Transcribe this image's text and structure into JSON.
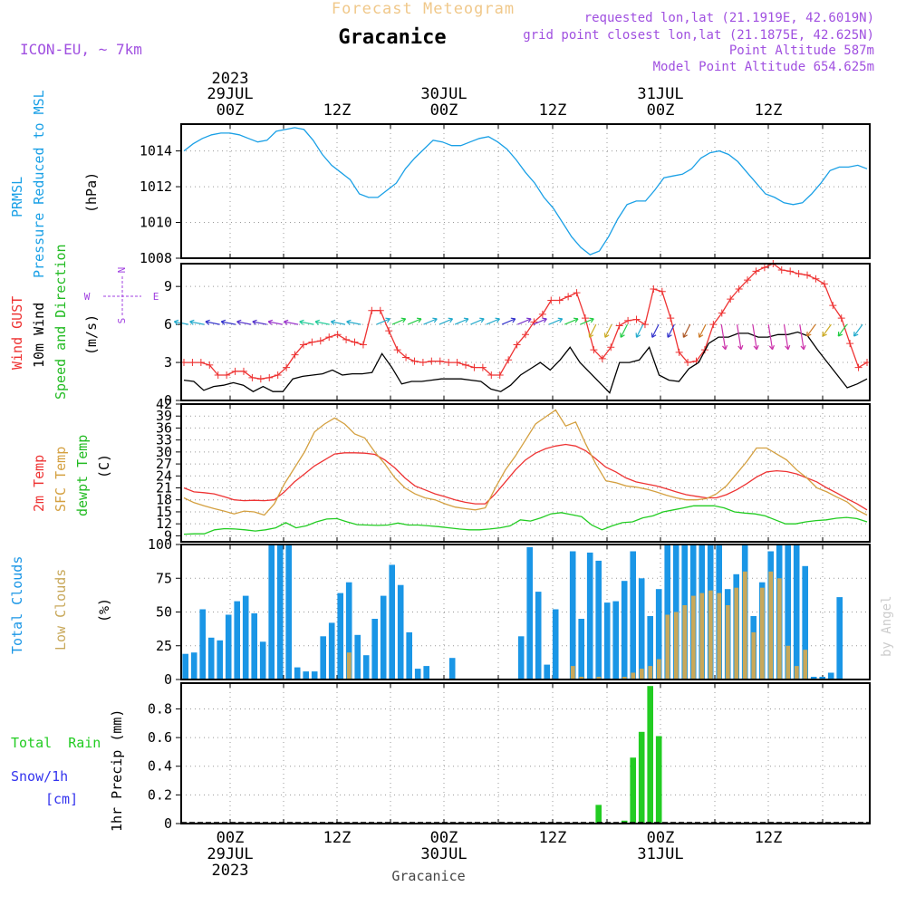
{
  "header": {
    "title": "Forecast Meteogram",
    "location": "Gracanice",
    "model": "ICON-EU, ~ 7km",
    "requested": "requested lon,lat (21.1919E, 42.6019N)",
    "gridpoint": "grid point closest lon,lat (21.1875E, 42.625N)",
    "altitude": "Point Altitude 587m",
    "model_altitude": "Model Point Altitude 654.625m",
    "footer": "Gracanice",
    "credit": "by Angel"
  },
  "time_axis": {
    "ticks": [
      "00Z",
      "12Z",
      "00Z",
      "12Z",
      "00Z",
      "12Z"
    ],
    "dates": [
      "29JUL",
      "30JUL",
      "31JUL"
    ],
    "year": "2023"
  },
  "colors": {
    "pressure": "#1aa0e6",
    "gust": "#ee3333",
    "wind": "#000000",
    "temp": "#ee3333",
    "sfc": "#d4a040",
    "dew": "#22cc22",
    "cloud_total": "#1a96e6",
    "cloud_low": "#c8a85a",
    "rain": "#22cc22",
    "snow": "#3333ee",
    "purple": "#a040e0"
  },
  "labels": {
    "p1": [
      "PRMSL",
      "Pressure Reduced to MSL",
      "(hPa)"
    ],
    "p2": [
      "Wind GUST",
      "10m Wind",
      "Speed and Direction",
      "(m/s)"
    ],
    "compass": {
      "w": "W",
      "e": "E",
      "n": "N",
      "s": "S"
    },
    "p3": [
      "2m Temp",
      "SFC Temp",
      "dewpt Temp",
      "(C)"
    ],
    "p4": [
      "Total Clouds",
      "Low Clouds",
      "(%)"
    ],
    "p5": [
      "Total  Rain",
      "Snow/1h",
      "[cm]",
      "1hr Precip (mm)"
    ]
  },
  "chart_data": [
    {
      "type": "line",
      "name_ref": "pressure",
      "ylim": [
        1008,
        1015.5
      ],
      "yticks": [
        1008,
        1010,
        1012,
        1014
      ],
      "series": [
        {
          "name": "PRMSL",
          "values": [
            1014.0,
            1014.4,
            1014.7,
            1014.9,
            1015.0,
            1015.0,
            1014.9,
            1014.7,
            1014.5,
            1014.6,
            1015.1,
            1015.2,
            1015.3,
            1015.2,
            1014.6,
            1013.8,
            1013.2,
            1012.8,
            1012.4,
            1011.6,
            1011.4,
            1011.4,
            1011.8,
            1012.2,
            1013.0,
            1013.6,
            1014.1,
            1014.6,
            1014.5,
            1014.3,
            1014.3,
            1014.5,
            1014.7,
            1014.8,
            1014.5,
            1014.1,
            1013.5,
            1012.8,
            1012.2,
            1011.4,
            1010.8,
            1010.0,
            1009.2,
            1008.6,
            1008.2,
            1008.4,
            1009.2,
            1010.2,
            1011.0,
            1011.2,
            1011.2,
            1011.8,
            1012.5,
            1012.6,
            1012.7,
            1013.0,
            1013.6,
            1013.9,
            1014.0,
            1013.8,
            1013.4,
            1012.8,
            1012.2,
            1011.6,
            1011.4,
            1011.1,
            1011.0,
            1011.1,
            1011.6,
            1012.2,
            1012.9,
            1013.1,
            1013.1,
            1013.2,
            1013.0
          ]
        }
      ]
    },
    {
      "type": "line",
      "name_ref": "wind",
      "ylim": [
        0,
        10.8
      ],
      "yticks": [
        0,
        3,
        6,
        9
      ],
      "series": [
        {
          "name": "Wind GUST",
          "values": [
            3.0,
            3.0,
            3.0,
            2.8,
            2.0,
            2.0,
            2.3,
            2.3,
            1.8,
            1.7,
            1.8,
            2.0,
            2.6,
            3.6,
            4.4,
            4.6,
            4.7,
            5.0,
            5.2,
            4.8,
            4.6,
            4.4,
            7.1,
            7.1,
            5.5,
            4.0,
            3.4,
            3.1,
            3.0,
            3.1,
            3.1,
            3.0,
            3.0,
            2.8,
            2.6,
            2.6,
            2.0,
            2.0,
            3.2,
            4.4,
            5.2,
            6.2,
            6.8,
            7.9,
            7.9,
            8.2,
            8.5,
            6.5,
            4.0,
            3.3,
            4.2,
            5.9,
            6.3,
            6.4,
            6.0,
            8.8,
            8.6,
            6.5,
            3.8,
            3.0,
            3.1,
            4.0,
            6.0,
            6.9,
            8.0,
            8.8,
            9.5,
            10.2,
            10.5,
            10.8,
            10.3,
            10.2,
            10.0,
            9.9,
            9.6,
            9.2,
            7.5,
            6.5,
            4.5,
            2.6,
            3.0
          ]
        },
        {
          "name": "10m Wind",
          "values": [
            1.6,
            1.5,
            0.8,
            1.1,
            1.2,
            1.4,
            1.2,
            0.7,
            1.1,
            0.7,
            0.7,
            1.7,
            1.9,
            2.0,
            2.1,
            2.4,
            2.0,
            2.1,
            2.1,
            2.2,
            3.7,
            2.6,
            1.3,
            1.5,
            1.5,
            1.6,
            1.7,
            1.7,
            1.7,
            1.6,
            1.5,
            0.9,
            0.7,
            1.2,
            2.0,
            2.5,
            3.0,
            2.4,
            3.2,
            4.2,
            3.0,
            2.2,
            1.4,
            0.6,
            3.0,
            3.0,
            3.2,
            4.2,
            2.0,
            1.6,
            1.5,
            2.5,
            3.0,
            4.5,
            5.0,
            5.0,
            5.3,
            5.3,
            5.0,
            5.0,
            5.2,
            5.2,
            5.4,
            5.1,
            4.0,
            3.0,
            2.0,
            1.0,
            1.3,
            1.7
          ]
        }
      ]
    },
    {
      "type": "line",
      "name_ref": "temp",
      "ylim": [
        7.5,
        42
      ],
      "yticks": [
        9,
        12,
        15,
        18,
        21,
        24,
        27,
        30,
        33,
        36,
        39,
        42
      ],
      "series": [
        {
          "name": "2m Temp",
          "values": [
            21.0,
            20.0,
            19.8,
            19.5,
            18.8,
            18.0,
            17.8,
            17.9,
            17.8,
            18.0,
            20.0,
            22.5,
            24.5,
            26.5,
            28.0,
            29.5,
            29.8,
            29.8,
            29.7,
            29.4,
            28.0,
            26.0,
            23.5,
            21.5,
            20.5,
            19.5,
            18.8,
            18.0,
            17.4,
            17.0,
            17.0,
            19.5,
            22.5,
            25.5,
            28.0,
            29.7,
            30.8,
            31.5,
            31.9,
            31.5,
            30.3,
            28.3,
            26.2,
            25.0,
            23.5,
            22.5,
            22.0,
            21.5,
            20.8,
            20.0,
            19.3,
            18.9,
            18.5,
            18.5,
            19.3,
            20.5,
            22.0,
            23.7,
            25.0,
            25.3,
            25.1,
            24.5,
            23.5,
            22.5,
            21.0,
            19.7,
            18.3,
            17.0,
            15.5
          ]
        },
        {
          "name": "SFC Temp",
          "values": [
            18.5,
            17.3,
            16.5,
            15.8,
            15.2,
            14.5,
            15.2,
            15.0,
            14.2,
            17.0,
            22.0,
            26.0,
            30.0,
            35.0,
            37.0,
            38.5,
            37.0,
            34.5,
            33.5,
            30.0,
            27.0,
            23.5,
            21.0,
            19.5,
            18.5,
            18.0,
            17.0,
            16.2,
            15.8,
            15.5,
            16.0,
            21.0,
            25.5,
            29.0,
            33.0,
            37.0,
            38.8,
            40.5,
            36.5,
            37.5,
            32.0,
            27.0,
            22.8,
            22.3,
            21.5,
            21.2,
            20.7,
            20.0,
            19.2,
            18.5,
            18.0,
            18.0,
            18.3,
            19.5,
            21.5,
            24.5,
            27.5,
            31.0,
            31.0,
            29.5,
            28.0,
            25.5,
            23.5,
            21.0,
            20.0,
            18.7,
            17.5,
            15.5,
            14.2
          ]
        },
        {
          "name": "dewpt Temp",
          "values": [
            9.4,
            9.5,
            9.5,
            10.5,
            10.8,
            10.7,
            10.5,
            10.2,
            10.5,
            11.0,
            12.3,
            11.0,
            11.5,
            12.5,
            13.2,
            13.3,
            12.5,
            11.8,
            11.7,
            11.6,
            11.7,
            12.2,
            11.7,
            11.7,
            11.5,
            11.3,
            11.0,
            10.7,
            10.5,
            10.5,
            10.7,
            11.0,
            11.5,
            13.0,
            12.7,
            13.5,
            14.5,
            14.8,
            14.3,
            13.8,
            11.7,
            10.5,
            11.5,
            12.3,
            12.5,
            13.5,
            14.0,
            15.0,
            15.5,
            16.0,
            16.5,
            16.5,
            16.5,
            16.0,
            15.0,
            14.7,
            14.5,
            14.0,
            13.0,
            12.0,
            12.0,
            12.5,
            12.8,
            13.0,
            13.4,
            13.6,
            13.3,
            12.5
          ]
        }
      ]
    },
    {
      "type": "bar",
      "name_ref": "clouds",
      "ylim": [
        0,
        100
      ],
      "yticks": [
        0,
        25,
        50,
        75,
        100
      ],
      "series": [
        {
          "name": "Total Clouds",
          "values": [
            19,
            20,
            52,
            31,
            29,
            48,
            58,
            62,
            49,
            28,
            100,
            100,
            100,
            9,
            6,
            6,
            32,
            42,
            64,
            72,
            33,
            18,
            45,
            62,
            85,
            70,
            35,
            8,
            10,
            0,
            0,
            16,
            0,
            0,
            0,
            0,
            0,
            0,
            0,
            32,
            98,
            65,
            11,
            52,
            0,
            95,
            45,
            94,
            88,
            57,
            58,
            73,
            95,
            75,
            47,
            67,
            100,
            100,
            100,
            100,
            100,
            100,
            100,
            67,
            78,
            100,
            47,
            72,
            95,
            100,
            100,
            100,
            84,
            2,
            2,
            5,
            61,
            0,
            0,
            0
          ]
        },
        {
          "name": "Low Clouds",
          "values": [
            0,
            0,
            0,
            0,
            0,
            0,
            0,
            0,
            0,
            0,
            0,
            0,
            0,
            0,
            0,
            0,
            0,
            0,
            0,
            20,
            0,
            0,
            0,
            0,
            0,
            0,
            0,
            0,
            0,
            0,
            0,
            0,
            0,
            0,
            0,
            0,
            0,
            0,
            0,
            0,
            0,
            0,
            0,
            0,
            0,
            10,
            2,
            0,
            2,
            0,
            0,
            2,
            5,
            8,
            10,
            15,
            48,
            50,
            55,
            62,
            64,
            66,
            64,
            55,
            68,
            80,
            35,
            68,
            80,
            75,
            25,
            10,
            22,
            0,
            0,
            0,
            0,
            0,
            0,
            0
          ]
        }
      ]
    },
    {
      "type": "bar",
      "name_ref": "precip",
      "ylim": [
        0,
        0.98
      ],
      "yticks": [
        0,
        0.2,
        0.4,
        0.6,
        0.8
      ],
      "series": [
        {
          "name": "1hr Precip",
          "values": [
            0,
            0,
            0,
            0,
            0,
            0,
            0,
            0,
            0,
            0,
            0,
            0,
            0,
            0,
            0,
            0,
            0,
            0,
            0,
            0,
            0,
            0,
            0,
            0,
            0,
            0,
            0,
            0,
            0,
            0,
            0,
            0,
            0,
            0,
            0,
            0,
            0,
            0,
            0,
            0,
            0,
            0,
            0,
            0,
            0,
            0,
            0,
            0,
            0.13,
            0,
            0,
            0.02,
            0.46,
            0.64,
            0.96,
            0.61,
            0,
            0,
            0,
            0,
            0,
            0,
            0,
            0,
            0,
            0,
            0,
            0,
            0,
            0,
            0,
            0,
            0,
            0,
            0,
            0,
            0,
            0,
            0,
            0
          ]
        }
      ]
    }
  ]
}
